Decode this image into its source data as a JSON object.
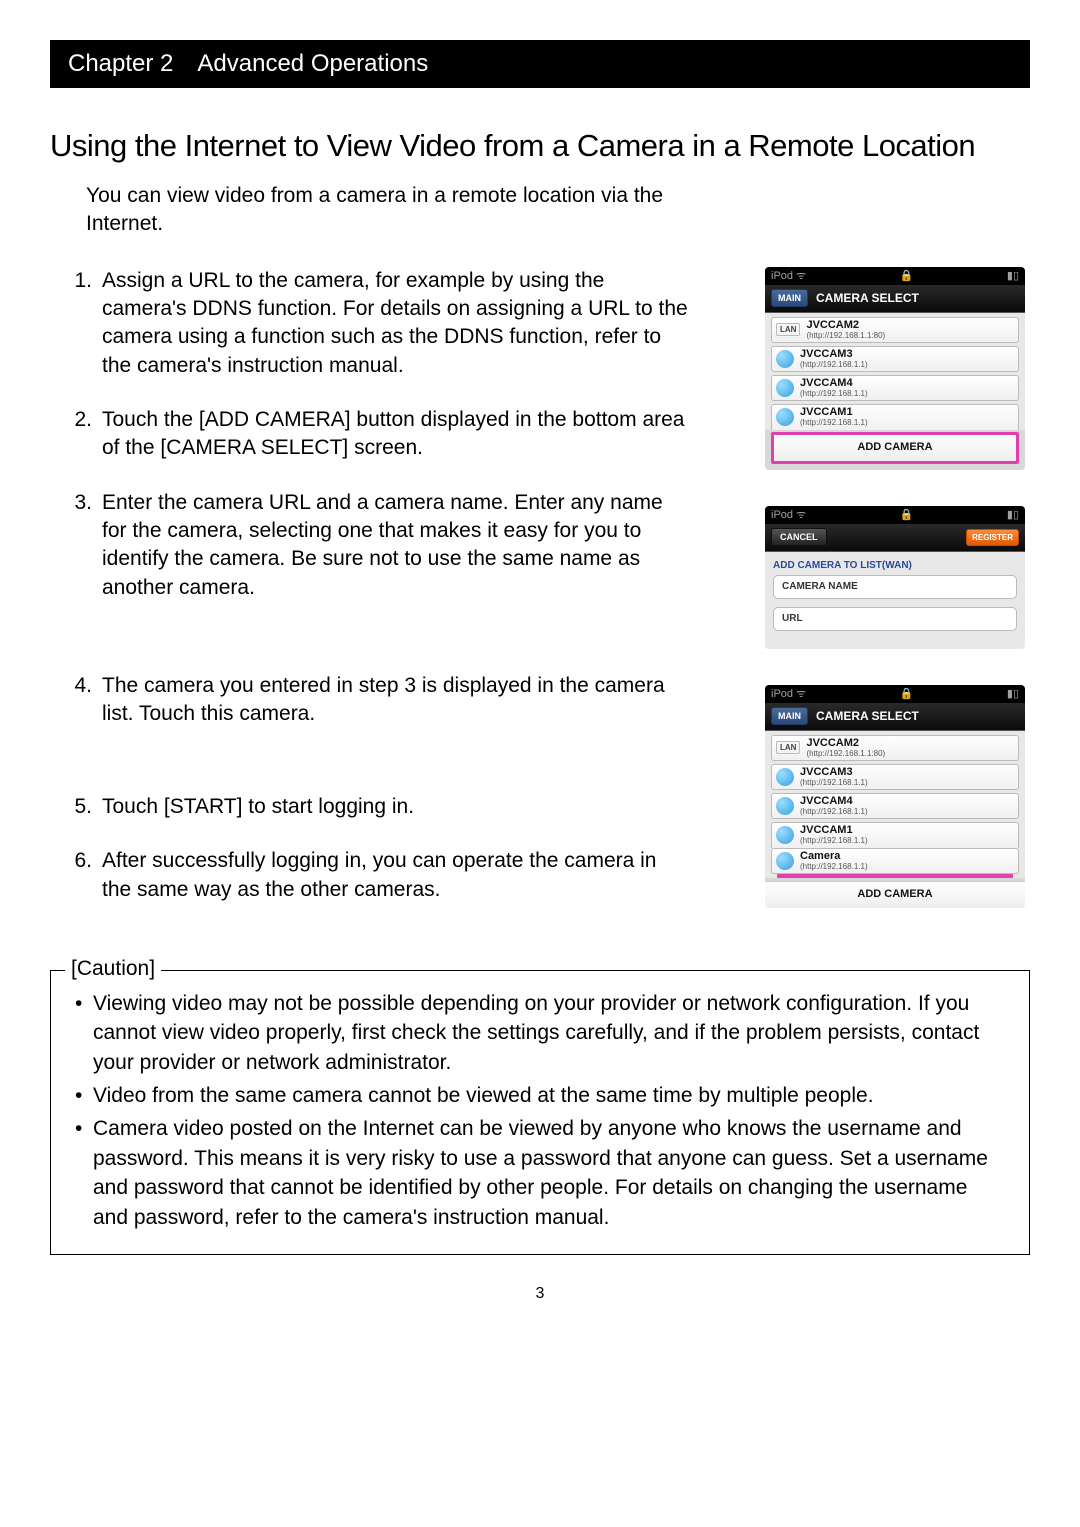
{
  "chapter": {
    "label": "Chapter 2",
    "title": "Advanced Operations"
  },
  "main_title": "Using the Internet to View Video from a Camera in a Remote Location",
  "intro": "You can view video from a camera in a remote location via the Internet.",
  "steps": [
    {
      "n": "1.",
      "text": "Assign a URL to the camera, for example by using the camera's DDNS function. For details on assigning a URL to the camera using a function such as the DDNS function, refer to the camera's instruction manual."
    },
    {
      "n": "2.",
      "text": "Touch the [ADD CAMERA] button displayed in the bottom area of the [CAMERA SELECT] screen."
    },
    {
      "n": "3.",
      "text": "Enter the camera URL and a camera name. Enter any name for the camera, selecting one that makes it easy for you to identify the camera. Be sure not to use the same name as another camera."
    },
    {
      "n": "4.",
      "text": "The camera you entered in step 3 is displayed in the camera list. Touch this camera."
    },
    {
      "n": "5.",
      "text": "Touch [START] to start logging in."
    },
    {
      "n": "6.",
      "text": "After successfully logging in, you can operate the camera in the same way as the other cameras."
    }
  ],
  "caution": {
    "label": "[Caution]",
    "items": [
      "Viewing video may not be possible depending on your provider or network configuration. If you cannot view video properly, first check the settings carefully, and if the problem persists, contact your provider or network administrator.",
      "Video from the same camera cannot be viewed at the same time by multiple people.",
      "Camera video posted on the Internet can be viewed by anyone who knows the username and password. This means it is very risky to use a password that anyone can guess. Set a username and password that cannot be identified by other people. For details on changing the username and password, refer to the camera's instruction manual."
    ]
  },
  "page_number": "3",
  "ipod": {
    "status_left": "iPod ᯤ",
    "status_mid": "🔒",
    "status_right": "▮▯",
    "screen1": {
      "main_btn": "MAIN",
      "header": "CAMERA SELECT",
      "rows": [
        {
          "badge": "LAN",
          "name": "JVCCAM2",
          "url": "(http://192.168.1.1:80)"
        },
        {
          "globe": true,
          "name": "JVCCAM3",
          "url": "(http://192.168.1.1)"
        },
        {
          "globe": true,
          "name": "JVCCAM4",
          "url": "(http://192.168.1.1)"
        },
        {
          "globe": true,
          "name": "JVCCAM1",
          "url": "(http://192.168.1.1)",
          "cutoff": true
        }
      ],
      "add_camera": "ADD CAMERA"
    },
    "screen2": {
      "cancel": "CANCEL",
      "register": "REGISTER",
      "section_label": "ADD CAMERA TO LIST(WAN)",
      "field1": "CAMERA NAME",
      "field2": "URL"
    },
    "screen3": {
      "main_btn": "MAIN",
      "header": "CAMERA SELECT",
      "rows": [
        {
          "badge": "LAN",
          "name": "JVCCAM2",
          "url": "(http://192.168.1.1:80)"
        },
        {
          "globe": true,
          "name": "JVCCAM3",
          "url": "(http://192.168.1.1)"
        },
        {
          "globe": true,
          "name": "JVCCAM4",
          "url": "(http://192.168.1.1)"
        },
        {
          "globe": true,
          "name": "JVCCAM1",
          "url": "(http://192.168.1.1)",
          "cutoff": true
        },
        {
          "globe": true,
          "name": "Camera",
          "url": "(http://192.168.1.1)",
          "highlight": true
        }
      ],
      "add_camera": "ADD CAMERA"
    }
  }
}
